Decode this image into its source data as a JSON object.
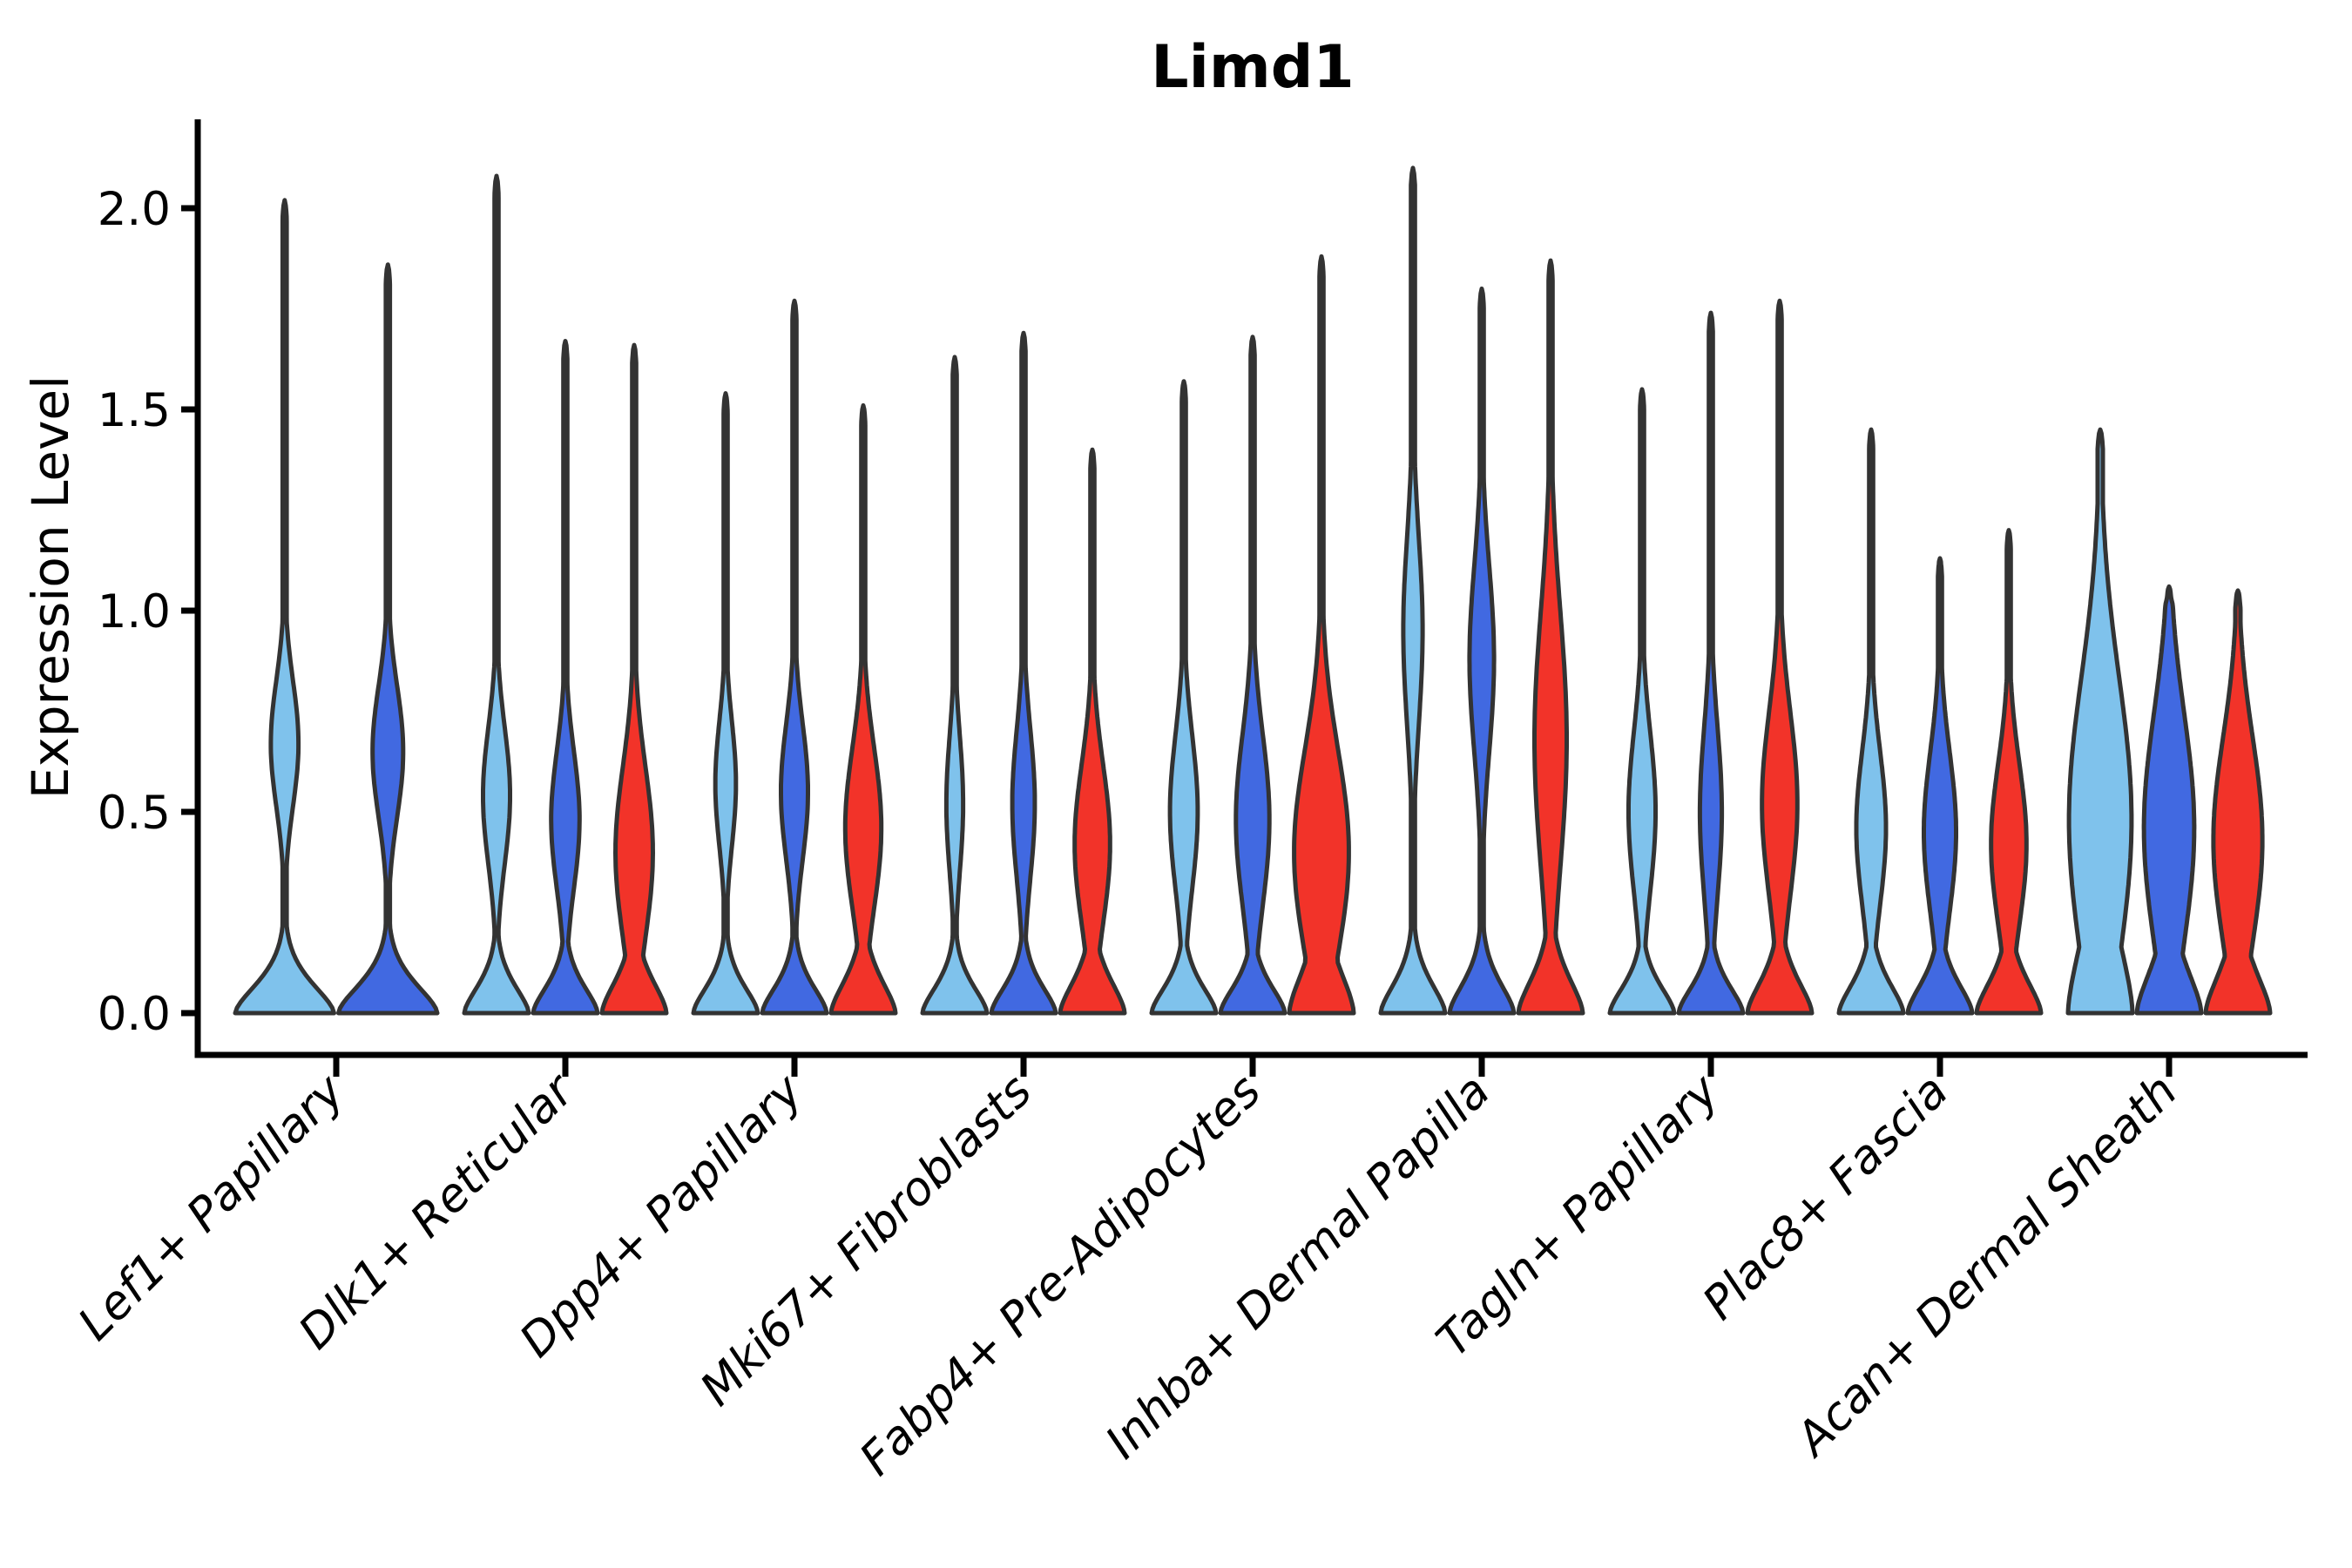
{
  "title": "Limd1",
  "ylabel": "Expression Level",
  "colors": {
    "light_blue": "#7FC2EC",
    "dark_blue": "#4169E1",
    "red": "#F23329",
    "edge": "#333333",
    "axis": "#000000",
    "background": "#ffffff"
  },
  "chart_data": {
    "type": "violin",
    "title": "Limd1",
    "xlabel": "",
    "ylabel": "Expression Level",
    "yticks": [
      {
        "value": 0.0,
        "label": "0.0"
      },
      {
        "value": 0.5,
        "label": "0.5"
      },
      {
        "value": 1.0,
        "label": "1.0"
      },
      {
        "value": 1.5,
        "label": "1.5"
      },
      {
        "value": 2.0,
        "label": "2.0"
      }
    ],
    "ylim": [
      -0.1,
      2.22
    ],
    "grid": false,
    "legend": "none",
    "series_colors": [
      {
        "name": "light_blue",
        "hex": "#7FC2EC"
      },
      {
        "name": "dark_blue",
        "hex": "#4169E1"
      },
      {
        "name": "red",
        "hex": "#F23329"
      }
    ],
    "groups": [
      {
        "label": "Lef1+ Papillary",
        "violins": [
          {
            "series": "light_blue",
            "max": 2.02,
            "bulge_center": 0.67,
            "bulge_width": 0.28,
            "bulge_spread": 0.22,
            "base_spread": 0.105,
            "spike_width": 0.041
          },
          {
            "series": "dark_blue",
            "max": 1.86,
            "bulge_center": 0.65,
            "bulge_width": 0.31,
            "bulge_spread": 0.23,
            "base_spread": 0.105,
            "spike_width": 0.041
          }
        ]
      },
      {
        "label": "Dlk1+ Reticular",
        "violins": [
          {
            "series": "light_blue",
            "max": 2.08,
            "bulge_center": 0.54,
            "bulge_width": 0.42,
            "bulge_spread": 0.24,
            "base_spread": 0.1,
            "spike_width": 0.063
          },
          {
            "series": "dark_blue",
            "max": 1.67,
            "bulge_center": 0.48,
            "bulge_width": 0.44,
            "bulge_spread": 0.24,
            "base_spread": 0.1,
            "spike_width": 0.063
          },
          {
            "series": "red",
            "max": 1.66,
            "bulge_center": 0.4,
            "bulge_width": 0.58,
            "bulge_spread": 0.3,
            "base_spread": 0.12,
            "spike_width": 0.063
          }
        ]
      },
      {
        "label": "Dpp4+ Papillary",
        "violins": [
          {
            "series": "light_blue",
            "max": 1.54,
            "bulge_center": 0.57,
            "bulge_width": 0.32,
            "bulge_spread": 0.22,
            "base_spread": 0.1,
            "spike_width": 0.063
          },
          {
            "series": "dark_blue",
            "max": 1.77,
            "bulge_center": 0.55,
            "bulge_width": 0.42,
            "bulge_spread": 0.24,
            "base_spread": 0.1,
            "spike_width": 0.063
          },
          {
            "series": "red",
            "max": 1.51,
            "bulge_center": 0.46,
            "bulge_width": 0.56,
            "bulge_spread": 0.28,
            "base_spread": 0.12,
            "spike_width": 0.063
          }
        ]
      },
      {
        "label": "Mki67+ Fibroblasts",
        "violins": [
          {
            "series": "light_blue",
            "max": 1.63,
            "bulge_center": 0.52,
            "bulge_width": 0.26,
            "bulge_spread": 0.24,
            "base_spread": 0.1,
            "spike_width": 0.063
          },
          {
            "series": "dark_blue",
            "max": 1.69,
            "bulge_center": 0.52,
            "bulge_width": 0.35,
            "bulge_spread": 0.26,
            "base_spread": 0.1,
            "spike_width": 0.063
          },
          {
            "series": "red",
            "max": 1.4,
            "bulge_center": 0.42,
            "bulge_width": 0.55,
            "bulge_spread": 0.28,
            "base_spread": 0.12,
            "spike_width": 0.063
          }
        ]
      },
      {
        "label": "Fabp4+ Pre-Adipocytes",
        "violins": [
          {
            "series": "light_blue",
            "max": 1.57,
            "bulge_center": 0.5,
            "bulge_width": 0.43,
            "bulge_spread": 0.27,
            "base_spread": 0.1,
            "spike_width": 0.063
          },
          {
            "series": "dark_blue",
            "max": 1.68,
            "bulge_center": 0.48,
            "bulge_width": 0.52,
            "bulge_spread": 0.3,
            "base_spread": 0.1,
            "spike_width": 0.063
          },
          {
            "series": "red",
            "max": 1.88,
            "bulge_center": 0.4,
            "bulge_width": 0.85,
            "bulge_spread": 0.36,
            "base_spread": 0.16,
            "spike_width": 0.063
          }
        ]
      },
      {
        "label": "Inhba+ Dermal Papilla",
        "violins": [
          {
            "series": "light_blue",
            "max": 2.1,
            "bulge_center": 0.95,
            "bulge_width": 0.3,
            "bulge_spread": 0.33,
            "base_spread": 0.11,
            "spike_width": 0.063
          },
          {
            "series": "dark_blue",
            "max": 1.8,
            "bulge_center": 0.88,
            "bulge_width": 0.38,
            "bulge_spread": 0.33,
            "base_spread": 0.11,
            "spike_width": 0.063
          },
          {
            "series": "red",
            "max": 1.87,
            "bulge_center": 0.68,
            "bulge_width": 0.5,
            "bulge_spread": 0.45,
            "base_spread": 0.13,
            "spike_width": 0.063
          }
        ]
      },
      {
        "label": "Tagln+ Papillary",
        "violins": [
          {
            "series": "light_blue",
            "max": 1.55,
            "bulge_center": 0.5,
            "bulge_width": 0.42,
            "bulge_spread": 0.28,
            "base_spread": 0.1,
            "spike_width": 0.063
          },
          {
            "series": "dark_blue",
            "max": 1.74,
            "bulge_center": 0.5,
            "bulge_width": 0.34,
            "bulge_spread": 0.3,
            "base_spread": 0.1,
            "spike_width": 0.063
          },
          {
            "series": "red",
            "max": 1.77,
            "bulge_center": 0.52,
            "bulge_width": 0.55,
            "bulge_spread": 0.32,
            "base_spread": 0.12,
            "spike_width": 0.063
          }
        ]
      },
      {
        "label": "Plac8+ Fascia",
        "violins": [
          {
            "series": "light_blue",
            "max": 1.45,
            "bulge_center": 0.46,
            "bulge_width": 0.46,
            "bulge_spread": 0.27,
            "base_spread": 0.11,
            "spike_width": 0.063
          },
          {
            "series": "dark_blue",
            "max": 1.13,
            "bulge_center": 0.45,
            "bulge_width": 0.5,
            "bulge_spread": 0.28,
            "base_spread": 0.11,
            "spike_width": 0.063
          },
          {
            "series": "red",
            "max": 1.2,
            "bulge_center": 0.42,
            "bulge_width": 0.55,
            "bulge_spread": 0.28,
            "base_spread": 0.12,
            "spike_width": 0.063
          }
        ]
      },
      {
        "label": "Acan+ Dermal Sheath",
        "violins": [
          {
            "series": "light_blue",
            "max": 1.45,
            "bulge_center": 0.48,
            "bulge_width": 0.97,
            "bulge_spread": 0.5,
            "base_spread": 0.28,
            "spike_width": 0.08
          },
          {
            "series": "dark_blue",
            "max": 1.06,
            "bulge_center": 0.46,
            "bulge_width": 0.78,
            "bulge_spread": 0.4,
            "base_spread": 0.16,
            "spike_width": 0.08
          },
          {
            "series": "red",
            "max": 1.05,
            "bulge_center": 0.43,
            "bulge_width": 0.76,
            "bulge_spread": 0.36,
            "base_spread": 0.15,
            "spike_width": 0.08
          }
        ]
      }
    ]
  }
}
